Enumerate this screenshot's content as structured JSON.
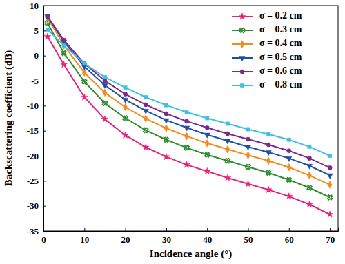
{
  "chart_data": {
    "type": "line",
    "x_label": "Incidence angle (°)",
    "y_label": "Backscattering coefficient (dB)",
    "x": [
      1,
      5,
      10,
      15,
      20,
      25,
      30,
      35,
      40,
      45,
      50,
      55,
      60,
      65,
      70
    ],
    "xlim": [
      0,
      72
    ],
    "xticks": [
      0,
      10,
      20,
      30,
      40,
      50,
      60,
      70
    ],
    "ylim": [
      -35,
      10
    ],
    "yticks": [
      -35,
      -30,
      -25,
      -20,
      -15,
      -10,
      -5,
      0,
      5,
      10
    ],
    "legend": "upper right",
    "series": [
      {
        "name": "σ = 0.2 cm",
        "color": "#e8237a",
        "marker": "star",
        "line_style": "solid",
        "values": [
          3.8,
          -1.8,
          -8.3,
          -12.7,
          -15.9,
          -18.3,
          -20.2,
          -21.8,
          -23.1,
          -24.4,
          -25.6,
          -26.8,
          -28.1,
          -29.7,
          -31.7
        ]
      },
      {
        "name": "σ = 0.3 cm",
        "color": "#2e8b2e",
        "marker": "x",
        "line_style": "solid",
        "values": [
          6.5,
          0.5,
          -5.2,
          -9.5,
          -12.5,
          -14.9,
          -16.8,
          -18.4,
          -19.8,
          -21.0,
          -22.2,
          -23.4,
          -24.8,
          -26.4,
          -28.3
        ]
      },
      {
        "name": "σ = 0.4 cm",
        "color": "#f28c1c",
        "marker": "diamond",
        "line_style": "solid",
        "values": [
          7.6,
          2.0,
          -3.4,
          -7.4,
          -10.3,
          -12.6,
          -14.5,
          -16.1,
          -17.5,
          -18.7,
          -19.9,
          -21.0,
          -22.3,
          -23.9,
          -25.8
        ]
      },
      {
        "name": "σ = 0.5 cm",
        "color": "#1f4fa8",
        "marker": "triangle-down",
        "line_style": "solid",
        "values": [
          7.8,
          2.8,
          -2.2,
          -5.9,
          -8.8,
          -11.0,
          -12.9,
          -14.4,
          -15.8,
          -17.0,
          -18.2,
          -19.3,
          -20.5,
          -22.0,
          -23.9
        ]
      },
      {
        "name": "σ = 0.6 cm",
        "color": "#7b2a8b",
        "marker": "circle",
        "line_style": "solid",
        "values": [
          7.8,
          3.1,
          -1.6,
          -5.0,
          -7.7,
          -9.8,
          -11.6,
          -13.1,
          -14.4,
          -15.6,
          -16.7,
          -17.8,
          -19.0,
          -20.5,
          -22.4
        ]
      },
      {
        "name": "σ = 0.8 cm",
        "color": "#3ec0e0",
        "marker": "square",
        "line_style": "solid",
        "values": [
          5.2,
          2.0,
          -1.6,
          -4.3,
          -6.4,
          -8.3,
          -9.9,
          -11.3,
          -12.5,
          -13.6,
          -14.7,
          -15.7,
          -16.8,
          -18.2,
          -20.0
        ]
      }
    ]
  }
}
